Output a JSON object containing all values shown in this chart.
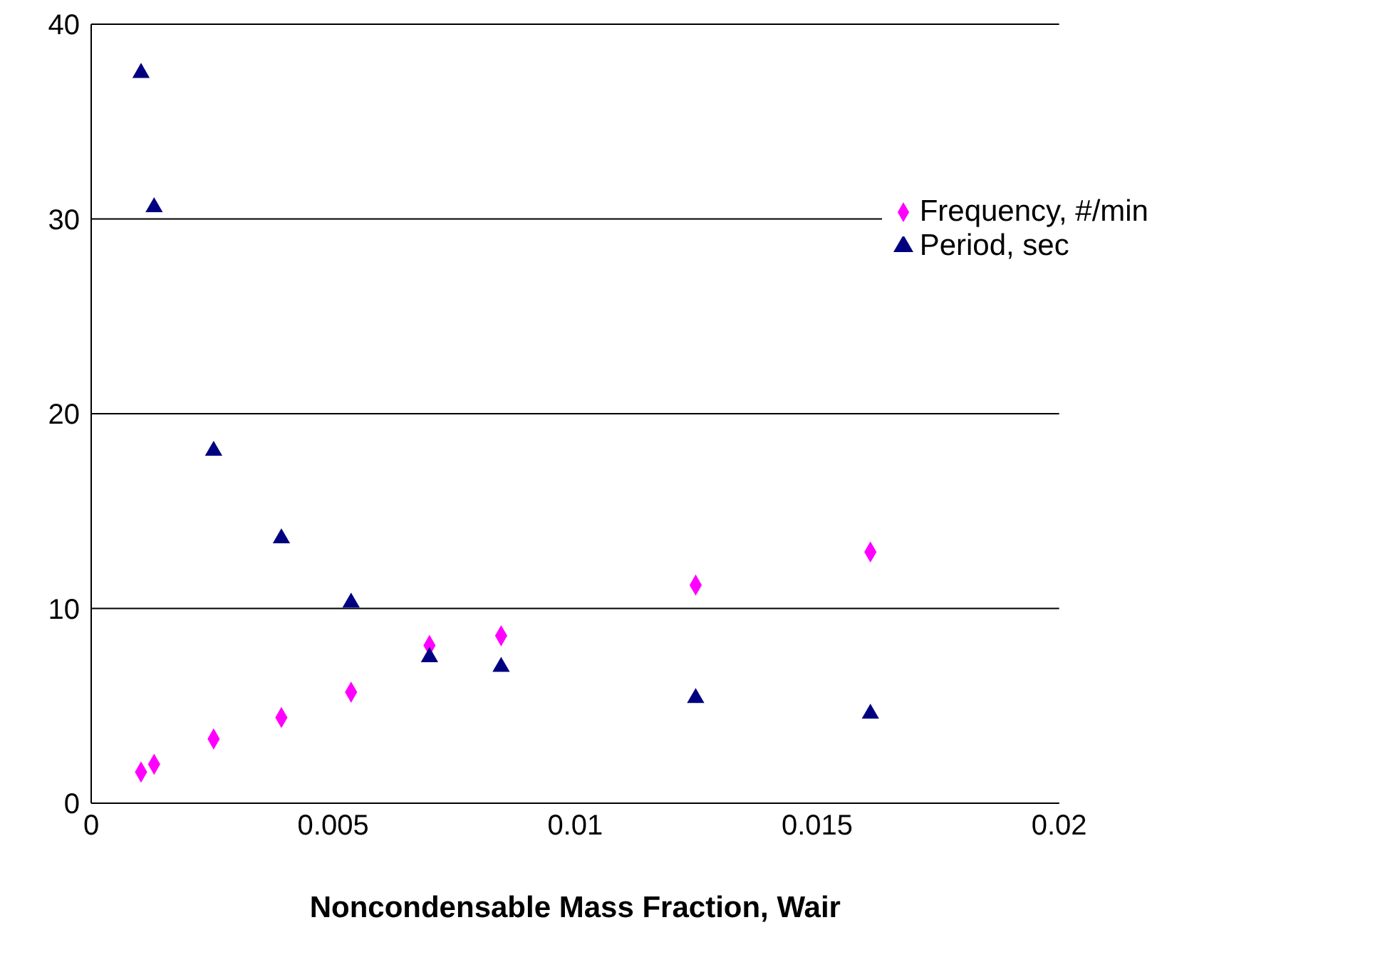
{
  "chart_data": {
    "type": "scatter",
    "xlabel": "Noncondensable Mass Fraction, Wair",
    "xlim": [
      0,
      0.02
    ],
    "xticks": [
      0,
      0.005,
      0.01,
      0.015,
      0.02
    ],
    "ylim": [
      0,
      40
    ],
    "yticks": [
      0,
      10,
      20,
      30,
      40
    ],
    "grid": "y",
    "legend": "top right",
    "series": [
      {
        "name": "Frequency, #/min",
        "color": "#ff00ff",
        "marker": "diamond",
        "x": [
          0.00103,
          0.0013,
          0.00253,
          0.00393,
          0.00537,
          0.00699,
          0.00847,
          0.01249,
          0.0161
        ],
        "values": [
          1.6,
          2.0,
          3.3,
          4.4,
          5.7,
          8.1,
          8.6,
          11.2,
          12.9
        ]
      },
      {
        "name": "Period, sec",
        "color": "#000080",
        "marker": "triangle",
        "x": [
          0.00103,
          0.0013,
          0.00253,
          0.00393,
          0.00537,
          0.00699,
          0.00847,
          0.01249,
          0.0161
        ],
        "values": [
          37.5,
          30.6,
          18.1,
          13.6,
          10.3,
          7.5,
          7.0,
          5.4,
          4.6
        ]
      }
    ]
  }
}
